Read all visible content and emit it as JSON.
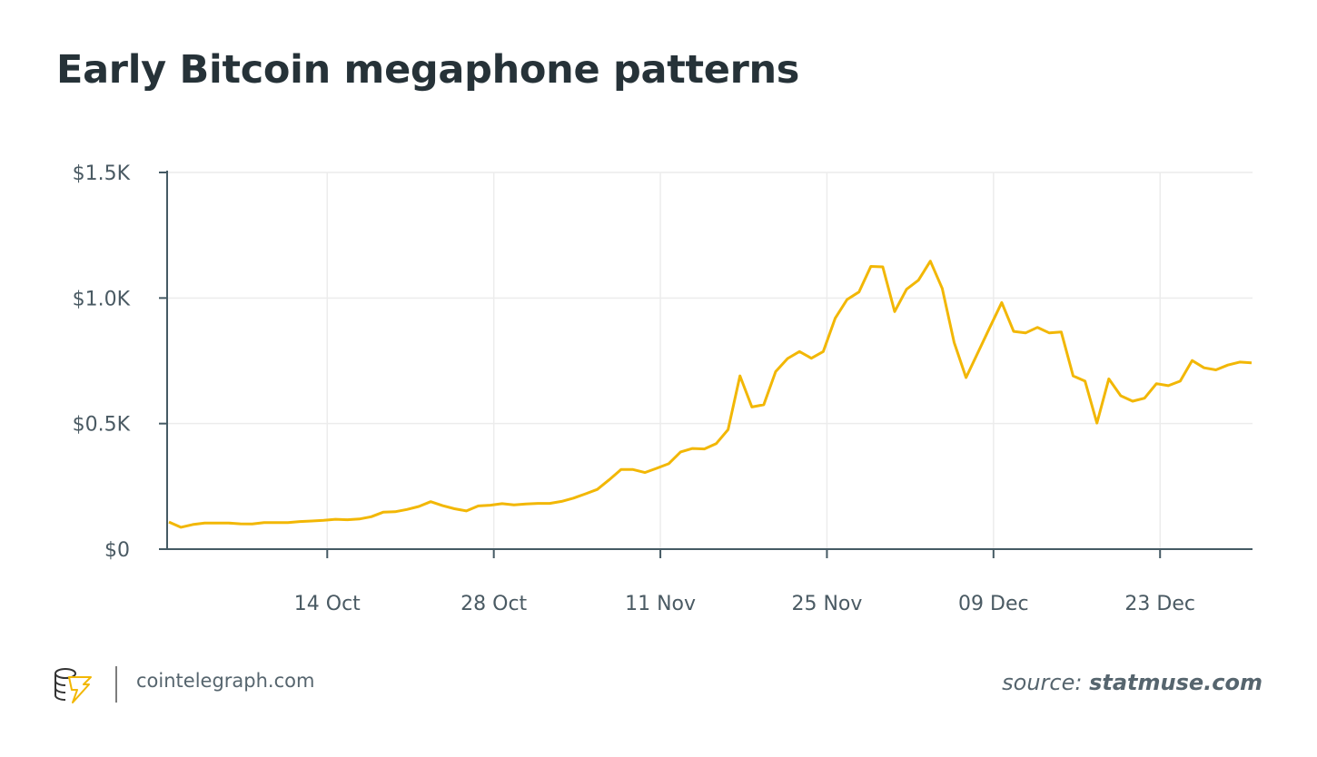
{
  "chart_data": {
    "type": "line",
    "title": "Early Bitcoin megaphone patterns",
    "xlabel": "",
    "ylabel": "",
    "ylim": [
      0,
      1500
    ],
    "yticks": [
      {
        "value": 0,
        "label": "$0"
      },
      {
        "value": 500,
        "label": "$0.5K"
      },
      {
        "value": 1000,
        "label": "$1.0K"
      },
      {
        "value": 1500,
        "label": "$1.5K"
      }
    ],
    "xticks": [
      "14 Oct",
      "28 Oct",
      "11 Nov",
      "25 Nov",
      "09 Dec",
      "23 Dec"
    ],
    "grid": true,
    "line_color": "#F2B705",
    "x": [
      "01 Oct",
      "02 Oct",
      "03 Oct",
      "04 Oct",
      "05 Oct",
      "06 Oct",
      "07 Oct",
      "08 Oct",
      "09 Oct",
      "10 Oct",
      "11 Oct",
      "12 Oct",
      "13 Oct",
      "14 Oct",
      "15 Oct",
      "16 Oct",
      "17 Oct",
      "18 Oct",
      "19 Oct",
      "20 Oct",
      "21 Oct",
      "22 Oct",
      "23 Oct",
      "24 Oct",
      "25 Oct",
      "26 Oct",
      "27 Oct",
      "28 Oct",
      "29 Oct",
      "30 Oct",
      "31 Oct",
      "01 Nov",
      "02 Nov",
      "03 Nov",
      "04 Nov",
      "05 Nov",
      "06 Nov",
      "07 Nov",
      "08 Nov",
      "09 Nov",
      "10 Nov",
      "11 Nov",
      "12 Nov",
      "13 Nov",
      "14 Nov",
      "15 Nov",
      "16 Nov",
      "17 Nov",
      "18 Nov",
      "19 Nov",
      "20 Nov",
      "21 Nov",
      "22 Nov",
      "23 Nov",
      "24 Nov",
      "25 Nov",
      "26 Nov",
      "27 Nov",
      "28 Nov",
      "29 Nov",
      "30 Nov",
      "01 Dec",
      "02 Dec",
      "03 Dec",
      "04 Dec",
      "05 Dec",
      "06 Dec",
      "07 Dec",
      "08 Dec",
      "09 Dec",
      "10 Dec",
      "11 Dec",
      "12 Dec",
      "13 Dec",
      "14 Dec",
      "15 Dec",
      "16 Dec",
      "17 Dec",
      "18 Dec",
      "19 Dec",
      "20 Dec",
      "21 Dec",
      "22 Dec",
      "23 Dec",
      "24 Dec",
      "25 Dec",
      "26 Dec",
      "27 Dec",
      "28 Dec",
      "29 Dec",
      "30 Dec",
      "31 Dec"
    ],
    "values": [
      108,
      87,
      98,
      104,
      104,
      104,
      101,
      100,
      106,
      106,
      106,
      110,
      112,
      115,
      119,
      117,
      120,
      129,
      147,
      149,
      158,
      170,
      189,
      173,
      161,
      152,
      172,
      175,
      181,
      176,
      180,
      182,
      182,
      190,
      203,
      220,
      238,
      276,
      317,
      317,
      305,
      322,
      340,
      387,
      401,
      399,
      420,
      476,
      690,
      566,
      575,
      707,
      759,
      787,
      760,
      787,
      919,
      994,
      1024,
      1126,
      1124,
      946,
      1035,
      1071,
      1147,
      1038,
      823,
      683,
      783,
      883,
      982,
      867,
      861,
      883,
      861,
      865,
      690,
      669,
      502,
      678,
      611,
      589,
      601,
      659,
      651,
      669,
      751,
      722,
      714,
      733,
      745,
      742
    ]
  },
  "footer": {
    "site": "cointelegraph.com",
    "source_prefix": "source:",
    "source_name": "statmuse.com",
    "logo_text": "cointelegraph"
  }
}
